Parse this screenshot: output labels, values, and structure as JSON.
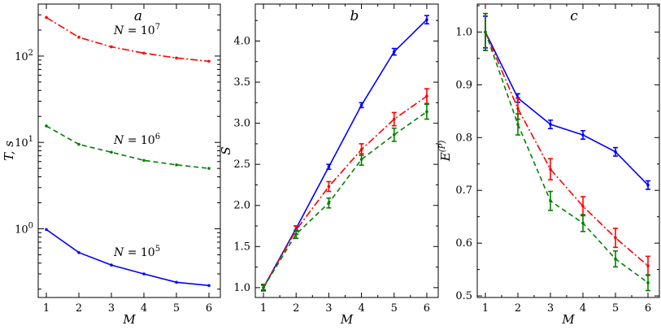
{
  "colors": {
    "blue": "#0000ff",
    "red": "#ff0000",
    "green": "#008000"
  },
  "chart_data": [
    {
      "type": "line",
      "panel": "a",
      "xlabel": "M",
      "ylabel": "T, s",
      "yscale": "log",
      "xlim": [
        0.75,
        6.35
      ],
      "ylim": [
        0.16,
        400
      ],
      "xticks": [
        "1",
        "2",
        "3",
        "4",
        "5",
        "6"
      ],
      "yticks": [
        {
          "value": 1,
          "base": "10",
          "exp": "0"
        },
        {
          "value": 10,
          "base": "10",
          "exp": "1"
        },
        {
          "value": 100,
          "base": "10",
          "exp": "2"
        }
      ],
      "x": [
        1,
        2,
        3,
        4,
        5,
        6
      ],
      "series": [
        {
          "values": [
            0.98,
            0.53,
            0.38,
            0.3,
            0.24,
            0.22
          ],
          "color": "blue",
          "style": "solid"
        },
        {
          "values": [
            15.5,
            9.5,
            7.7,
            6.2,
            5.5,
            5.0
          ],
          "color": "green",
          "style": "dashed"
        },
        {
          "values": [
            280,
            165,
            128,
            108,
            95,
            87
          ],
          "color": "red",
          "style": "dashdot"
        }
      ],
      "annotations": [
        {
          "base": "N = 10",
          "exp": "7"
        },
        {
          "base": "N = 10",
          "exp": "6"
        },
        {
          "base": "N = 10",
          "exp": "5"
        }
      ]
    },
    {
      "type": "line",
      "panel": "b",
      "xlabel": "M",
      "ylabel": "S",
      "xlim": [
        0.75,
        6.35
      ],
      "ylim": [
        0.88,
        4.45
      ],
      "xticks": [
        "1",
        "2",
        "3",
        "4",
        "5",
        "6"
      ],
      "yticks": [
        "1.0",
        "1.5",
        "2.0",
        "2.5",
        "3.0",
        "3.5",
        "4.0"
      ],
      "x": [
        1,
        2,
        3,
        4,
        5,
        6
      ],
      "series": [
        {
          "values": [
            1.0,
            1.72,
            2.47,
            3.22,
            3.87,
            4.26
          ],
          "errors": [
            0.03,
            0.03,
            0.03,
            0.03,
            0.04,
            0.05
          ],
          "color": "blue",
          "style": "solid"
        },
        {
          "values": [
            1.0,
            1.7,
            2.23,
            2.68,
            3.05,
            3.33
          ],
          "errors": [
            0.04,
            0.05,
            0.06,
            0.07,
            0.08,
            0.09
          ],
          "color": "red",
          "style": "dashdot"
        },
        {
          "values": [
            1.0,
            1.65,
            2.03,
            2.56,
            2.86,
            3.14
          ],
          "errors": [
            0.04,
            0.05,
            0.06,
            0.07,
            0.08,
            0.09
          ],
          "color": "green",
          "style": "dashed"
        }
      ]
    },
    {
      "type": "line",
      "panel": "c",
      "xlabel": "M",
      "ylabel": "E(P)",
      "xlim": [
        0.75,
        6.35
      ],
      "ylim": [
        0.497,
        1.053
      ],
      "xticks": [
        "1",
        "2",
        "3",
        "4",
        "5",
        "6"
      ],
      "yticks": [
        "0.5",
        "0.6",
        "0.7",
        "0.8",
        "0.9",
        "1.0"
      ],
      "x": [
        1,
        2,
        3,
        4,
        5,
        6
      ],
      "series": [
        {
          "values": [
            1.0,
            0.875,
            0.825,
            0.805,
            0.773,
            0.71
          ],
          "errors": [
            0.03,
            0.008,
            0.008,
            0.008,
            0.008,
            0.008
          ],
          "color": "blue",
          "style": "solid"
        },
        {
          "values": [
            1.0,
            0.855,
            0.74,
            0.67,
            0.61,
            0.557
          ],
          "errors": [
            0.035,
            0.02,
            0.02,
            0.018,
            0.018,
            0.018
          ],
          "color": "red",
          "style": "dashdot"
        },
        {
          "values": [
            1.0,
            0.825,
            0.68,
            0.638,
            0.57,
            0.525
          ],
          "errors": [
            0.035,
            0.02,
            0.018,
            0.016,
            0.015,
            0.015
          ],
          "color": "green",
          "style": "dashed"
        }
      ]
    }
  ]
}
